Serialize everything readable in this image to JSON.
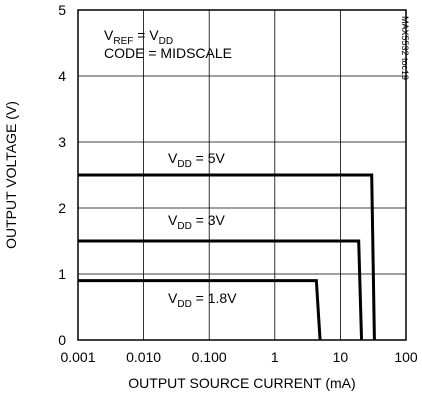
{
  "chart_data": {
    "type": "line",
    "xlabel": "OUTPUT SOURCE CURRENT (mA)",
    "ylabel": "OUTPUT VOLTAGE (V)",
    "x_scale": "log",
    "xlim": [
      0.001,
      100
    ],
    "ylim": [
      0,
      5
    ],
    "grid": true,
    "x_ticks": [
      0.001,
      0.01,
      0.1,
      1,
      10,
      100
    ],
    "x_tick_labels": [
      "0.001",
      "0.010",
      "0.100",
      "1",
      "10",
      "100"
    ],
    "y_ticks": [
      0,
      1,
      2,
      3,
      4,
      5
    ],
    "y_tick_labels": [
      "0",
      "1",
      "2",
      "3",
      "4",
      "5"
    ],
    "conditions": {
      "line1_main": "V",
      "line1_sub1": "REF",
      "line1_mid": " = V",
      "line1_sub2": "DD",
      "line2": "CODE = MIDSCALE"
    },
    "side_note": "MAX5532 toc19",
    "series": [
      {
        "label_main": "V",
        "label_sub": "DD",
        "label_rest": " = 5V",
        "points": [
          [
            0.001,
            2.5
          ],
          [
            30,
            2.5
          ],
          [
            33,
            0
          ]
        ]
      },
      {
        "label_main": "V",
        "label_sub": "DD",
        "label_rest": " = 3V",
        "points": [
          [
            0.001,
            1.5
          ],
          [
            19,
            1.5
          ],
          [
            21,
            0
          ]
        ]
      },
      {
        "label_main": "V",
        "label_sub": "DD",
        "label_rest": " = 1.8V",
        "points": [
          [
            0.001,
            0.9
          ],
          [
            4.3,
            0.9
          ],
          [
            4.9,
            0
          ]
        ]
      }
    ]
  }
}
